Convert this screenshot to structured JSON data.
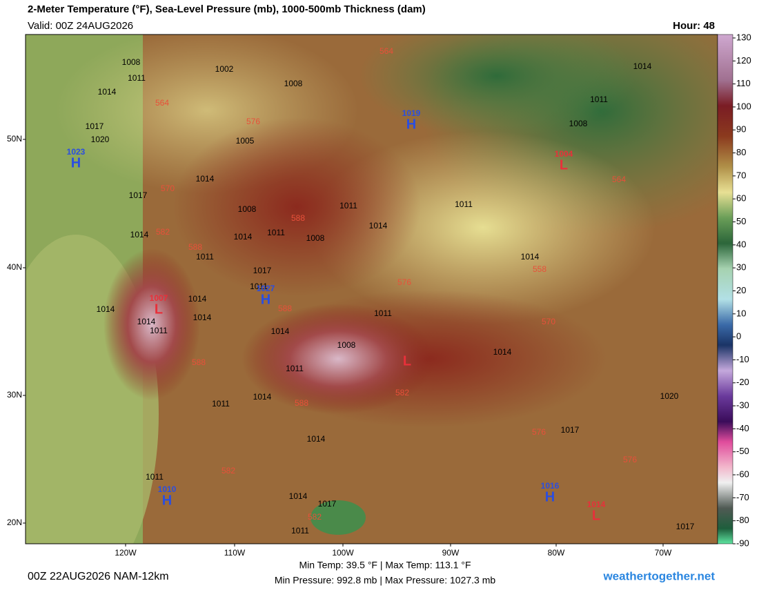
{
  "header": {
    "title": "2-Meter Temperature (°F), Sea-Level Pressure (mb), 1000-500mb Thickness (dam)",
    "valid": "Valid: 00Z 24AUG2026",
    "hour": "Hour: 48"
  },
  "map": {
    "lat_labels": [
      "50N",
      "40N",
      "30N",
      "20N"
    ],
    "lon_labels": [
      "120W",
      "110W",
      "100W",
      "90W",
      "80W",
      "70W"
    ],
    "pressure_labels": [
      "1008",
      "1002",
      "1011",
      "1008",
      "1014",
      "1017",
      "1020",
      "1005",
      "1011",
      "1008",
      "1014",
      "1014",
      "1017",
      "1011",
      "1008",
      "1014",
      "1008",
      "1014",
      "1011",
      "1014",
      "1011",
      "1017",
      "1011",
      "1014",
      "1014",
      "1011",
      "1014",
      "1014",
      "1014",
      "1011",
      "1008",
      "1011",
      "1014",
      "1014",
      "1011",
      "1020",
      "1017",
      "1014",
      "1011",
      "1014",
      "1017",
      "1017",
      "1011",
      "1014",
      "1011"
    ],
    "thickness_labels": [
      "564",
      "564",
      "576",
      "570",
      "582",
      "588",
      "588",
      "576",
      "564",
      "558",
      "570",
      "588",
      "588",
      "588",
      "582",
      "582",
      "576",
      "576",
      "582"
    ],
    "centers": [
      {
        "symbol": "H",
        "pressure": "1019"
      },
      {
        "symbol": "H",
        "pressure": "1023"
      },
      {
        "symbol": "L",
        "pressure": "1004"
      },
      {
        "symbol": "H",
        "pressure": "1027"
      },
      {
        "symbol": "L",
        "pressure": "1007"
      },
      {
        "symbol": "L"
      },
      {
        "symbol": "H",
        "pressure": "1010"
      },
      {
        "symbol": "H",
        "pressure": "1016"
      },
      {
        "symbol": "L",
        "pressure": "1014"
      }
    ]
  },
  "colorbar": {
    "ticks": [
      130,
      120,
      110,
      100,
      90,
      80,
      70,
      60,
      50,
      40,
      30,
      20,
      10,
      0,
      -10,
      -20,
      -30,
      -40,
      -50,
      -60,
      -70,
      -80,
      -90
    ]
  },
  "footer": {
    "temps": "Min Temp:  39.5 °F | Max Temp: 113.1 °F",
    "pressures": "Min Pressure: 992.8 mb | Max Pressure: 1027.3 mb",
    "model": "00Z 22AUG2026 NAM-12km",
    "site": "weathertogether.net"
  }
}
